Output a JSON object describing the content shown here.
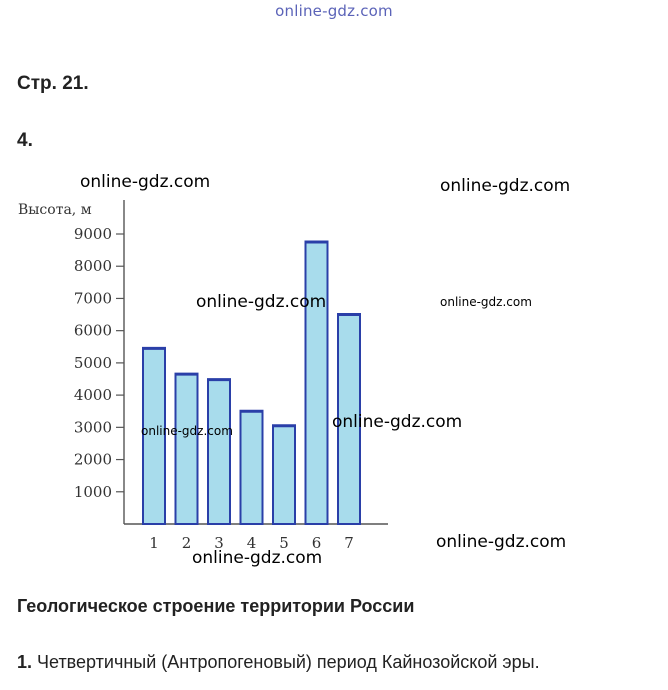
{
  "watermark_top": "online-gdz.com",
  "page_title": "Стр. 21.",
  "task_number": "4.",
  "watermarks": [
    "online-gdz.com",
    "online-gdz.com",
    "online-gdz.com",
    "online-gdz.com",
    "online-gdz.com",
    "online-gdz.com",
    "online-gdz.com",
    "online-gdz.com"
  ],
  "colors": {
    "bar_fill": "#a8dcec",
    "bar_stroke": "#2a3fa8",
    "axis": "#555555"
  },
  "chart_data": {
    "type": "bar",
    "ylabel": "Высота, м",
    "xlabel": "",
    "categories": [
      "1",
      "2",
      "3",
      "4",
      "5",
      "6",
      "7"
    ],
    "values": [
      5450,
      4650,
      4480,
      3500,
      3050,
      8750,
      6500
    ],
    "yticks": [
      1000,
      2000,
      3000,
      4000,
      5000,
      6000,
      7000,
      8000,
      9000
    ],
    "ylim": [
      0,
      9500
    ],
    "grid": false
  },
  "section_heading": "Геологическое строение территории России",
  "answer": {
    "number": "1.",
    "text": "Четвертичный (Антропогеновый) период Кайнозойской эры."
  }
}
